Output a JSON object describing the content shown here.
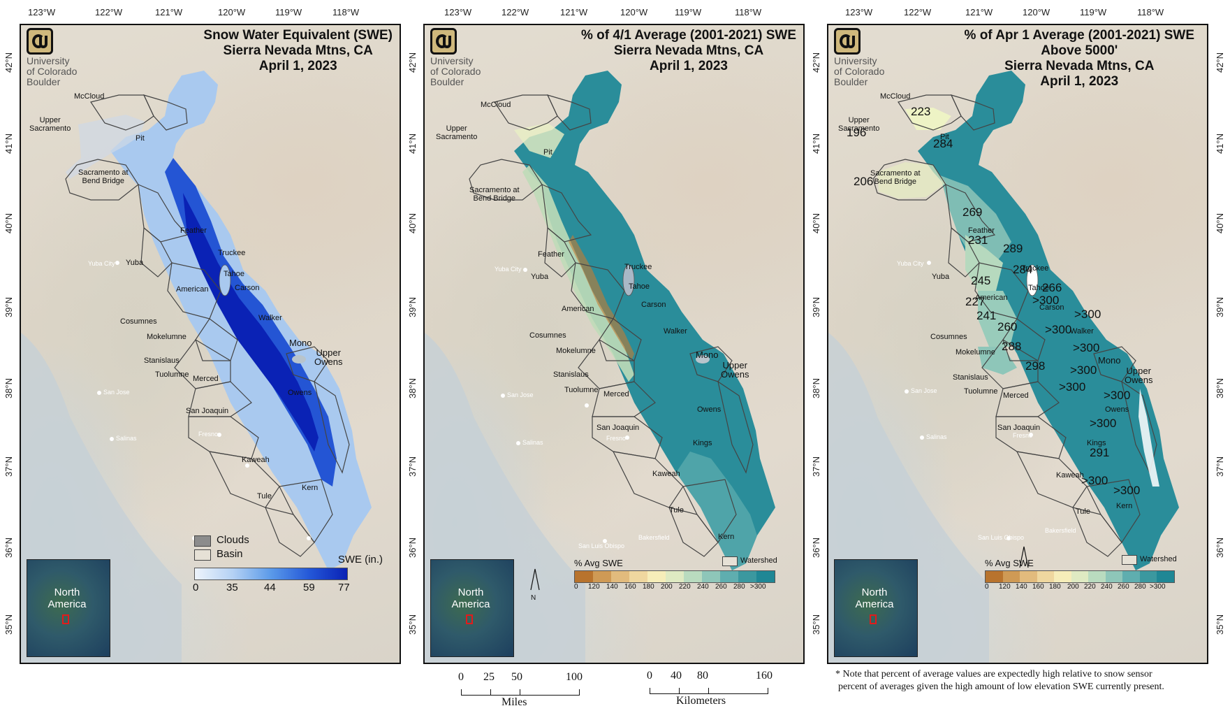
{
  "longitudes": [
    "123°W",
    "122°W",
    "121°W",
    "120°W",
    "119°W",
    "118°W"
  ],
  "latitudes": [
    "42°N",
    "41°N",
    "40°N",
    "39°N",
    "38°N",
    "37°N",
    "36°N",
    "35°N"
  ],
  "logo": {
    "line1": "University",
    "line2": "of Colorado",
    "line3": "Boulder"
  },
  "inset": {
    "line1": "North",
    "line2": "America"
  },
  "panels": [
    {
      "title1": "Snow Water Equivalent (SWE)",
      "title2": "Sierra Nevada Mtns, CA",
      "title3": "April 1, 2023",
      "legend": {
        "clouds": "Clouds",
        "basin": "Basin",
        "ramp_title": "SWE (in.)",
        "ticks": [
          "0",
          "35",
          "44",
          "59",
          "77"
        ],
        "ramp_colors": [
          "#e8f1fb",
          "#9cc3f2",
          "#4b8ee8",
          "#1f4fd6",
          "#0a22b5"
        ]
      }
    },
    {
      "title1": "% of 4/1 Average (2001-2021) SWE",
      "title2": "Sierra Nevada Mtns, CA",
      "title3": "April 1, 2023",
      "legend": {
        "ramp_title": "% Avg SWE",
        "watershed": "Watershed",
        "ticks": [
          "0",
          "120",
          "140",
          "160",
          "180",
          "200",
          "220",
          "240",
          "260",
          "280",
          ">300"
        ],
        "ramp_colors": [
          "#b8732d",
          "#cf9a55",
          "#e2bb7d",
          "#efd79f",
          "#f6edb9",
          "#dfeac2",
          "#b9dbbf",
          "#8ec6b9",
          "#5faeaf",
          "#3b989f",
          "#1f8795"
        ]
      }
    },
    {
      "title1": "% of Apr 1 Average (2001-2021) SWE",
      "title2": "Above 5000'",
      "title3": "Sierra Nevada Mtns, CA",
      "title4": "April 1, 2023",
      "legend": {
        "ramp_title": "% Avg SWE",
        "watershed": "Watershed",
        "ticks": [
          "0",
          "120",
          "140",
          "160",
          "180",
          "200",
          "220",
          "240",
          "260",
          "280",
          ">300"
        ]
      }
    }
  ],
  "basin_labels": {
    "mccloud": "McCloud",
    "upper_sac": "Upper\nSacramento",
    "pit": "Pit",
    "sac_bend": "Sacramento at\nBend Bridge",
    "feather": "Feather",
    "yuba": "Yuba",
    "truckee": "Truckee",
    "tahoe": "Tahoe",
    "american": "American",
    "carson": "Carson",
    "cosumnes": "Cosumnes",
    "walker": "Walker",
    "mokelumne": "Mokelumne",
    "mono": "Mono",
    "upper_owens": "Upper\nOwens",
    "stanislaus": "Stanislaus",
    "tuolumne": "Tuolumne",
    "merced": "Merced",
    "owens": "Owens",
    "san_joaquin": "San Joaquin",
    "kings": "Kings",
    "kaweah": "Kaweah",
    "tule": "Tule",
    "kern": "Kern"
  },
  "cities": {
    "yuba_city": "Yuba City",
    "san_jose": "San Jose",
    "salinas": "Salinas",
    "fresno": "Fresno",
    "bakersfield": "Bakersfield",
    "san_luis_obispo": "San Luis Obispo"
  },
  "percent_values": {
    "upper_sac": "196",
    "mccloud": "223",
    "pit": "284",
    "sac_bend": "206",
    "feather": "269",
    "yuba": "231",
    "truckee": "289",
    "tahoe": "284",
    "american": "245",
    "carson": "266",
    "carson2": ">300",
    "cosumnes": "227",
    "walker": ">300",
    "mokelumne": "241",
    "mokelumne2": "260",
    "stanislaus_e": ">300",
    "mono": ">300",
    "stanislaus": "288",
    "tuolumne": "298",
    "merced": ">300",
    "owens": ">300",
    "sj": ">300",
    "kings": ">300",
    "kaweah": "291",
    "tule": ">300",
    "kern": ">300"
  },
  "north": "N",
  "scale": {
    "miles_ticks": [
      "0",
      "25",
      "50",
      "100"
    ],
    "miles_label": "Miles",
    "km_ticks": [
      "0",
      "40",
      "80",
      "160"
    ],
    "km_label": "Kilometers"
  },
  "note": {
    "line1": "* Note that percent of average values are expectedly high relative to snow sensor",
    "line2": "percent of averages given the high amount of low elevation SWE currently present."
  }
}
